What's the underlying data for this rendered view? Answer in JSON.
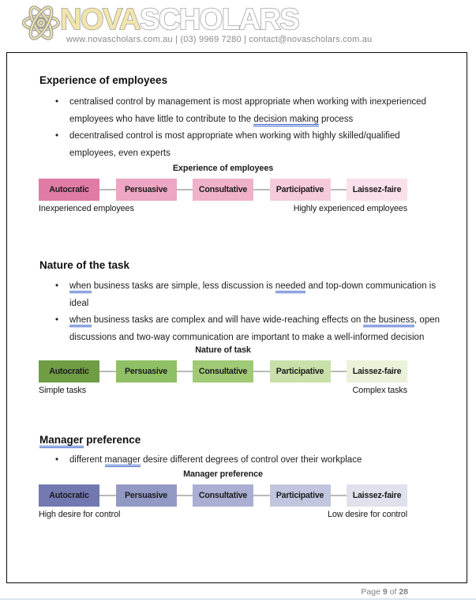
{
  "accents": {
    "grammar_underline": "#3a63c8",
    "brand_yellow": "#f2e5ab",
    "brand_outline_gray": "#a2a2a2",
    "connector_gray": "#b9b9b9"
  },
  "header": {
    "brand_nova": "NOVA",
    "brand_scholars": "SCHOLARS",
    "tagline": "www.novascholars.com.au | (03) 9969 7280 | contact@novascholars.com.au"
  },
  "sections": [
    {
      "heading": [
        {
          "t": "Experience of employees"
        }
      ],
      "bullets": [
        [
          {
            "t": "centralised control by management is most appropriate when working with inexperienced employees who have little to contribute to the "
          },
          {
            "t": "decision making",
            "u": true
          },
          {
            "t": " process"
          }
        ],
        [
          {
            "t": "decentralised control is most appropriate when working with highly skilled/qualified employees, even experts"
          }
        ]
      ],
      "diagram": {
        "title": "Experience of employees",
        "stages": [
          {
            "label": "Autocratic",
            "color": "#e07ba6"
          },
          {
            "label": "Persuasive",
            "color": "#eda6c3"
          },
          {
            "label": "Consultative",
            "color": "#f0b2cb"
          },
          {
            "label": "Participative",
            "color": "#f5cbdb"
          },
          {
            "label": "Laissez-faire",
            "color": "#fae0ea"
          }
        ],
        "left_label": "Inexperienced employees",
        "right_label": "Highly experienced employees"
      }
    },
    {
      "heading": [
        {
          "t": "Nature of the task"
        }
      ],
      "bullets": [
        [
          {
            "t": "when",
            "u": true
          },
          {
            "t": " business tasks are simple, less discussion is "
          },
          {
            "t": "needed",
            "u": true
          },
          {
            "t": " and top-down communication is ideal"
          }
        ],
        [
          {
            "t": "when",
            "u": true
          },
          {
            "t": " business tasks are complex and will have wide-reaching effects on "
          },
          {
            "t": "the business",
            "u": true
          },
          {
            "t": ", open discussions and two-way communication are important to make a well-informed decision"
          }
        ]
      ],
      "diagram": {
        "title": "Nature of task",
        "stages": [
          {
            "label": "Autocratic",
            "color": "#6f9d44"
          },
          {
            "label": "Persuasive",
            "color": "#8fc066"
          },
          {
            "label": "Consultative",
            "color": "#a0ca75"
          },
          {
            "label": "Participative",
            "color": "#c9e0ab"
          },
          {
            "label": "Laissez-faire",
            "color": "#eaf2da"
          }
        ],
        "left_label": "Simple tasks",
        "right_label": "Complex tasks"
      }
    },
    {
      "heading": [
        {
          "t": "Manager",
          "u": true
        },
        {
          "t": " preference"
        }
      ],
      "bullets": [
        [
          {
            "t": "different "
          },
          {
            "t": "manager",
            "u": true
          },
          {
            "t": " desire different degrees of control over their workplace"
          }
        ]
      ],
      "diagram": {
        "title": "Manager preference",
        "stages": [
          {
            "label": "Autocratic",
            "color": "#7278b0"
          },
          {
            "label": "Persuasive",
            "color": "#9399c5"
          },
          {
            "label": "Consultative",
            "color": "#a9aed2"
          },
          {
            "label": "Participative",
            "color": "#c1c5dd"
          },
          {
            "label": "Laissez-faire",
            "color": "#dfe1ec"
          }
        ],
        "left_label": "High desire for control",
        "right_label": "Low desire for control"
      }
    }
  ],
  "footer": {
    "page_label": "Page",
    "page_number": "9",
    "of_label": "of",
    "page_total": "28"
  }
}
